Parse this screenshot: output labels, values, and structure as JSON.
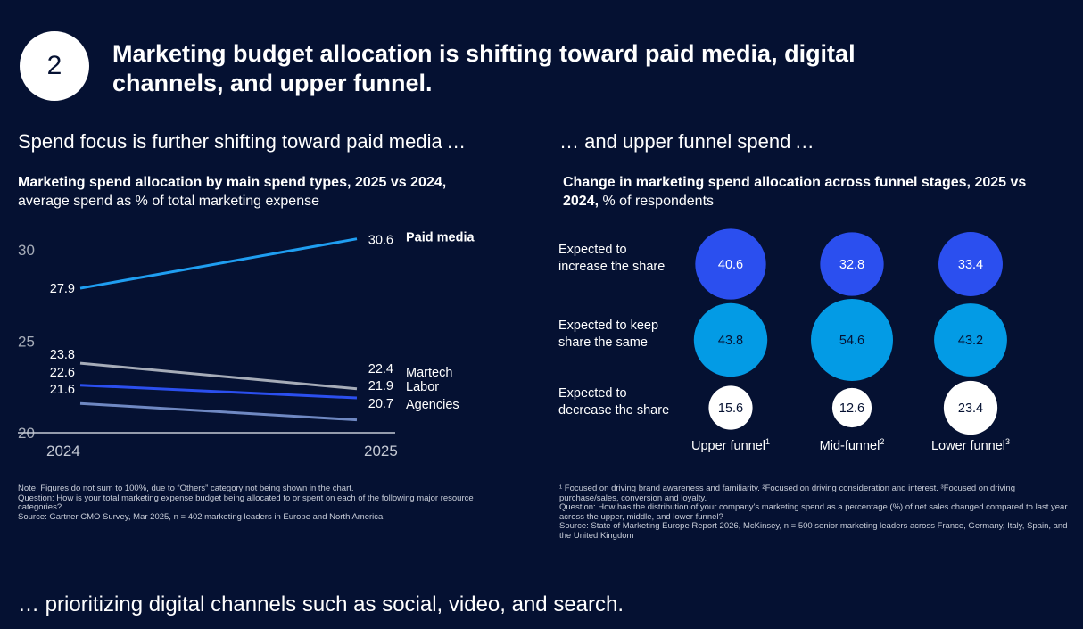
{
  "badge_number": "2",
  "headline": "Marketing budget allocation is shifting toward paid media, digital channels, and upper funnel.",
  "left": {
    "subhead": "Spend focus is further shifting toward paid media …",
    "title_bold": "Marketing spend allocation by main spend types, 2025 vs 2024,",
    "title_rest": "average spend as % of total marketing expense",
    "notes": [
      "Note: Figures do not sum to 100%, due to “Others” category not being shown in the chart.",
      "Question: How is your total marketing expense budget being allocated to or spent on each of the following major resource categories?",
      "Source: Gartner CMO Survey, Mar 2025, n = 402 marketing leaders in Europe and North America"
    ]
  },
  "right": {
    "subhead": "… and upper funnel spend …",
    "title_bold": "Change in marketing spend allocation across funnel stages, 2025 vs 2024,",
    "title_rest": " % of respondents",
    "notes": [
      "¹ Focused on driving brand awareness and familiarity. ²Focused on driving consideration and interest. ³Focused on driving purchase/sales, conversion and loyalty.",
      "Question: How has the distribution of your company's marketing spend as a percentage (%) of net sales changed compared to last year across the upper, middle, and lower funnel?",
      "Source: State of Marketing Europe Report 2026, McKinsey, n = 500 senior marketing leaders across France, Germany, Italy, Spain, and the United Kingdom"
    ]
  },
  "bottom_text": "… prioritizing digital channels such as social, video, and search.",
  "chart_data": [
    {
      "type": "line",
      "title": "Marketing spend allocation by main spend types, 2025 vs 2024",
      "ylabel": "average spend as % of total marketing expense",
      "x": [
        "2024",
        "2025"
      ],
      "ylim": [
        20,
        30
      ],
      "yticks": [
        "20",
        "25",
        "30"
      ],
      "series": [
        {
          "name": "Paid media",
          "values": [
            27.9,
            30.6
          ],
          "labels": [
            "27.9",
            "30.6"
          ],
          "color": "#1f9ef1",
          "bold": true
        },
        {
          "name": "Martech",
          "values": [
            23.8,
            22.4
          ],
          "labels": [
            "23.8",
            "22.4"
          ],
          "color": "#a6acb8",
          "bold": false
        },
        {
          "name": "Labor",
          "values": [
            22.6,
            21.9
          ],
          "labels": [
            "22.6",
            "21.9"
          ],
          "color": "#2b4fef",
          "bold": false
        },
        {
          "name": "Agencies",
          "values": [
            21.6,
            20.7
          ],
          "labels": [
            "21.6",
            "20.7"
          ],
          "color": "#6f88c2",
          "bold": false
        }
      ]
    },
    {
      "type": "bubble-matrix",
      "title": "Change in marketing spend allocation across funnel stages, 2025 vs 2024",
      "unit": "% of respondents",
      "columns": [
        {
          "name": "Upper funnel",
          "sup": "1"
        },
        {
          "name": "Mid-funnel",
          "sup": "2"
        },
        {
          "name": "Lower funnel",
          "sup": "3"
        }
      ],
      "rows": [
        {
          "label_lines": [
            "Expected to",
            "increase the share"
          ],
          "values": [
            40.6,
            32.8,
            33.4
          ],
          "labels": [
            "40.6",
            "32.8",
            "33.4"
          ],
          "color": "#2b4fef",
          "text_color": "#ffffff"
        },
        {
          "label_lines": [
            "Expected to keep",
            "share the same"
          ],
          "values": [
            43.8,
            54.6,
            43.2
          ],
          "labels": [
            "43.8",
            "54.6",
            "43.2"
          ],
          "color": "#039be5",
          "text_color": "#051132"
        },
        {
          "label_lines": [
            "Expected to",
            "decrease the share"
          ],
          "values": [
            15.6,
            12.6,
            23.4
          ],
          "labels": [
            "15.6",
            "12.6",
            "23.4"
          ],
          "color": "#ffffff",
          "text_color": "#051132"
        }
      ]
    }
  ]
}
